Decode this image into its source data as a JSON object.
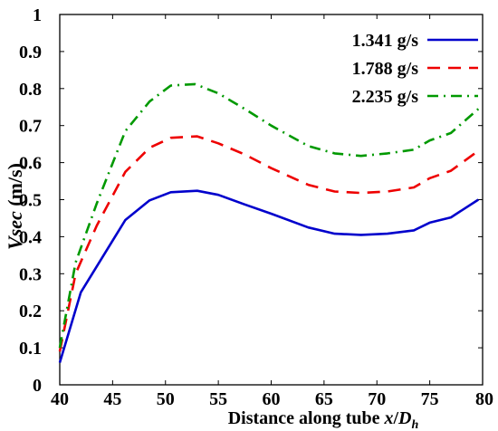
{
  "chart_data": {
    "type": "line",
    "xlabel": {
      "text": "Distance along tube ",
      "var": "x",
      "slash": "/",
      "var2": "D",
      "subscript": "h"
    },
    "ylabel": {
      "var": "Vsec",
      "unit": " (m/s)"
    },
    "xlim": [
      40,
      80
    ],
    "ylim": [
      0,
      1
    ],
    "xticks": [
      "40",
      "45",
      "50",
      "55",
      "60",
      "65",
      "70",
      "75",
      "80"
    ],
    "yticks": [
      "0",
      "0.1",
      "0.2",
      "0.3",
      "0.4",
      "0.5",
      "0.6",
      "0.7",
      "0.8",
      "0.9",
      "1"
    ],
    "xtick_values": [
      40,
      45,
      50,
      55,
      60,
      65,
      70,
      75,
      80
    ],
    "ytick_values": [
      0,
      0.1,
      0.2,
      0.3,
      0.4,
      0.5,
      0.6,
      0.7,
      0.8,
      0.9,
      1.0
    ],
    "grid": false,
    "legend_position": "top-right",
    "series": [
      {
        "name": "1.341 g/s",
        "color": "#0000cc",
        "style": "solid",
        "points": [
          [
            40,
            0.06
          ],
          [
            42,
            0.25
          ],
          [
            46.2,
            0.445
          ],
          [
            48.5,
            0.498
          ],
          [
            50.5,
            0.52
          ],
          [
            53,
            0.524
          ],
          [
            55,
            0.513
          ],
          [
            57.5,
            0.487
          ],
          [
            60,
            0.462
          ],
          [
            63.5,
            0.425
          ],
          [
            66,
            0.408
          ],
          [
            68.5,
            0.405
          ],
          [
            71,
            0.408
          ],
          [
            73.5,
            0.417
          ],
          [
            75,
            0.438
          ],
          [
            77,
            0.452
          ],
          [
            79.6,
            0.5
          ]
        ]
      },
      {
        "name": "1.788 g/s",
        "color": "#ee0000",
        "style": "dashed",
        "points": [
          [
            40,
            0.09
          ],
          [
            41.5,
            0.3
          ],
          [
            43.5,
            0.43
          ],
          [
            46.2,
            0.575
          ],
          [
            48.5,
            0.64
          ],
          [
            50.5,
            0.667
          ],
          [
            53,
            0.671
          ],
          [
            55,
            0.652
          ],
          [
            57.5,
            0.622
          ],
          [
            60,
            0.585
          ],
          [
            63.5,
            0.54
          ],
          [
            66,
            0.522
          ],
          [
            68.5,
            0.518
          ],
          [
            71,
            0.522
          ],
          [
            73.5,
            0.533
          ],
          [
            75,
            0.558
          ],
          [
            77,
            0.578
          ],
          [
            79.6,
            0.632
          ]
        ]
      },
      {
        "name": "2.235 g/s",
        "color": "#009900",
        "style": "dashdot",
        "points": [
          [
            40,
            0.1
          ],
          [
            41.5,
            0.33
          ],
          [
            43.5,
            0.49
          ],
          [
            46.2,
            0.685
          ],
          [
            48.5,
            0.765
          ],
          [
            50.5,
            0.808
          ],
          [
            52.8,
            0.812
          ],
          [
            55,
            0.787
          ],
          [
            57.5,
            0.745
          ],
          [
            60,
            0.7
          ],
          [
            63.5,
            0.645
          ],
          [
            66,
            0.625
          ],
          [
            68.5,
            0.618
          ],
          [
            71,
            0.625
          ],
          [
            73.5,
            0.635
          ],
          [
            75,
            0.66
          ],
          [
            77,
            0.68
          ],
          [
            79.6,
            0.745
          ]
        ]
      }
    ]
  }
}
